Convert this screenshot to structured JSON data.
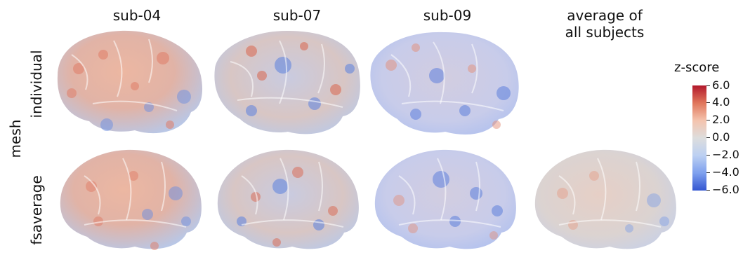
{
  "columns": [
    "sub-04",
    "sub-07",
    "sub-09",
    "average of\nall subjects"
  ],
  "row_group_label": "mesh",
  "rows": [
    "individual",
    "fsaverage"
  ],
  "colorbar": {
    "title": "z-score",
    "ticks": [
      "6.0",
      "4.0",
      "2.0",
      "0.0",
      "−2.0",
      "−4.0",
      "−6.0"
    ],
    "colors": {
      "max": "#b2182b",
      "mid": "#dddddd",
      "min": "#3456d1"
    }
  }
}
